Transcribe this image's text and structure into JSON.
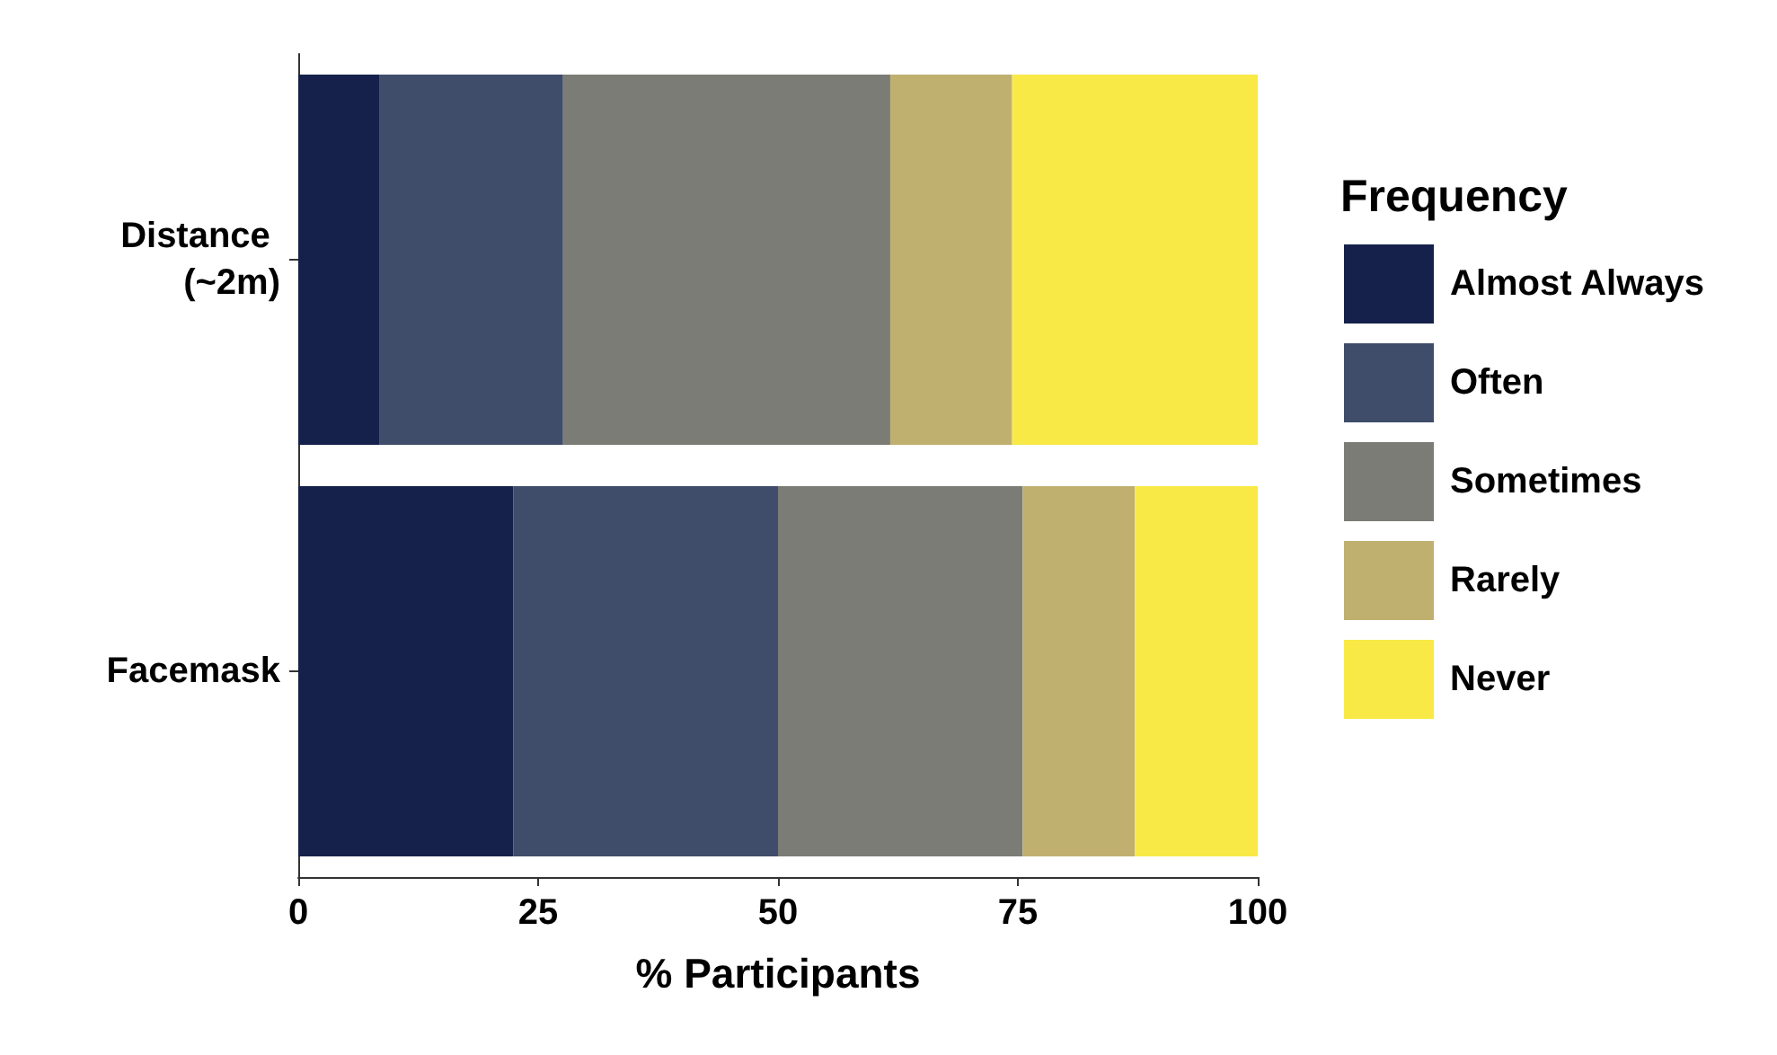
{
  "chart_data": {
    "type": "bar",
    "orientation": "horizontal",
    "stacked": true,
    "xlabel": "% Participants",
    "legend_title": "Frequency",
    "legend": "right",
    "categories": [
      "Distance (~2m)",
      "Facemask"
    ],
    "series": [
      {
        "name": "Almost Always",
        "color": "#15214b",
        "values": [
          8.5,
          22.4
        ]
      },
      {
        "name": "Often",
        "color": "#3f4d6b",
        "values": [
          19.1,
          27.6
        ]
      },
      {
        "name": "Sometimes",
        "color": "#7c7c76",
        "values": [
          34.1,
          25.5
        ]
      },
      {
        "name": "Rarely",
        "color": "#bfb06f",
        "values": [
          12.7,
          11.7
        ]
      },
      {
        "name": "Never",
        "color": "#f8e946",
        "values": [
          25.6,
          12.8
        ]
      }
    ],
    "xlim": [
      0,
      100
    ],
    "xticks": [
      0,
      25,
      50,
      75,
      100
    ],
    "grid": false
  }
}
